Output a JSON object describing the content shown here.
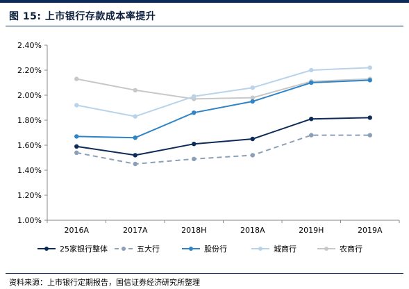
{
  "figure": {
    "title": "图 15:  上市银行存款成本率提升",
    "source": "资料来源：上市银行定期报告，国信证券经济研究所整理"
  },
  "chart_data": {
    "type": "line",
    "categories": [
      "2016A",
      "2017A",
      "2018H",
      "2018A",
      "2019H",
      "2019A"
    ],
    "ylim": [
      0.01,
      0.024
    ],
    "yticks": [
      "1.00%",
      "1.20%",
      "1.40%",
      "1.60%",
      "1.80%",
      "2.00%",
      "2.20%",
      "2.40%"
    ],
    "grid": false,
    "legend_position": "bottom",
    "series": [
      {
        "name": "25家银行整体",
        "values": [
          1.59,
          1.52,
          1.61,
          1.65,
          1.81,
          1.82
        ],
        "color": "#0c2b58",
        "dashed": false
      },
      {
        "name": "五大行",
        "values": [
          1.54,
          1.45,
          1.49,
          1.52,
          1.68,
          1.68
        ],
        "color": "#8a9fb8",
        "dashed": true
      },
      {
        "name": "股份行",
        "values": [
          1.67,
          1.66,
          1.86,
          1.95,
          2.1,
          2.12
        ],
        "color": "#2f84c6",
        "dashed": false
      },
      {
        "name": "城商行",
        "values": [
          1.92,
          1.83,
          1.99,
          2.06,
          2.2,
          2.22
        ],
        "color": "#b9d3ea",
        "dashed": false
      },
      {
        "name": "农商行",
        "values": [
          2.13,
          2.04,
          1.97,
          1.98,
          2.11,
          2.13
        ],
        "color": "#c8c8c8",
        "dashed": false
      }
    ]
  }
}
